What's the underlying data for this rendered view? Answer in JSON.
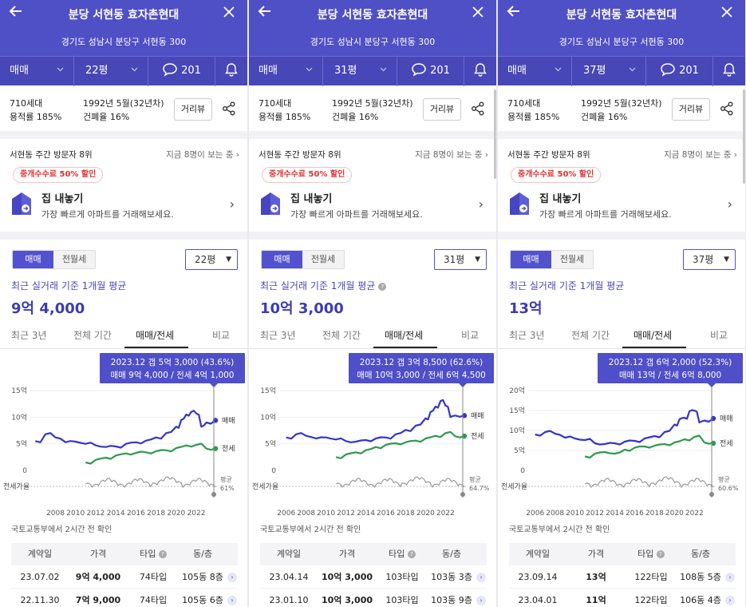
{
  "panels": [
    {
      "title": "분당 서현동 효자촌현대",
      "address": "경기도 성남시 분당구 서현동 300",
      "trade_type": "매매",
      "size": "22평",
      "comments": "201",
      "households": "710세대",
      "floor_area_ratio": "용적률 185%",
      "built": "1992년 5월(32년차)",
      "coverage": "건폐율 16%",
      "street_view": "거리뷰",
      "visit_rank": "서현동 주간 방문자 8위",
      "viewing_now": "지금 8명이 보는 중",
      "fee_badge": "중개수수료 50% 할인",
      "sell_title": "집 내놓기",
      "sell_sub": "가장 빠르게 아파트를 거래해보세요.",
      "toggle_on": "매매",
      "toggle_off": "전월세",
      "size_select": "22평",
      "avg_label": "최근 실거래 기준 1개월 평균",
      "avg_value": "9억 4,000",
      "tabs": [
        "최근 3년",
        "전체 기간",
        "매매/전세",
        "비교"
      ],
      "tooltip_line1": "2023.12  갭 5억 3,000 (43.6%)",
      "tooltip_line2": "매매 9억 4,000 / 전세 4억 1,000",
      "source": "국토교통부에서 2시간 전 확인",
      "table_headers": [
        "계약일",
        "가격",
        "타입",
        "동/층"
      ],
      "rows": [
        {
          "date": "23.07.02",
          "price": "9억 4,000",
          "type": "74타입",
          "floor": "105동 8층"
        },
        {
          "date": "22.11.30",
          "price": "7억 9,000",
          "type": "74타입",
          "floor": "105동 6층"
        }
      ]
    },
    {
      "title": "분당 서현동 효자촌현대",
      "address": "경기도 성남시 분당구 서현동 300",
      "trade_type": "매매",
      "size": "31평",
      "comments": "201",
      "households": "710세대",
      "floor_area_ratio": "용적률 185%",
      "built": "1992년 5월(32년차)",
      "coverage": "건폐율 16%",
      "street_view": "거리뷰",
      "visit_rank": "서현동 주간 방문자 8위",
      "viewing_now": "지금 8명이 보는 중",
      "fee_badge": "중개수수료 50% 할인",
      "sell_title": "집 내놓기",
      "sell_sub": "가장 빠르게 아파트를 거래해보세요.",
      "toggle_on": "매매",
      "toggle_off": "전월세",
      "size_select": "31평",
      "avg_label": "최근 실거래 기준 1개월 평균",
      "avg_value": "10억 3,000",
      "tabs": [
        "최근 3년",
        "전체 기간",
        "매매/전세",
        "비교"
      ],
      "tooltip_line1": "2023.12  갭 3억 8,500 (62.6%)",
      "tooltip_line2": "매매 10억 3,000 / 전세 6억 4,500",
      "source": "국토교통부에서 2시간 전 확인",
      "table_headers": [
        "계약일",
        "가격",
        "타입",
        "동/층"
      ],
      "rows": [
        {
          "date": "23.04.14",
          "price": "10억 3,000",
          "type": "103타입",
          "floor": "103동 3층"
        },
        {
          "date": "23.01.10",
          "price": "10억 3,000",
          "type": "103타입",
          "floor": "103동 9층"
        }
      ]
    },
    {
      "title": "분당 서현동 효자촌현대",
      "address": "경기도 성남시 분당구 서현동 300",
      "trade_type": "매매",
      "size": "37평",
      "comments": "201",
      "households": "710세대",
      "floor_area_ratio": "용적률 185%",
      "built": "1992년 5월(32년차)",
      "coverage": "건폐율 16%",
      "street_view": "거리뷰",
      "visit_rank": "서현동 주간 방문자 8위",
      "viewing_now": "지금 8명이 보는 중",
      "fee_badge": "중개수수료 50% 할인",
      "sell_title": "집 내놓기",
      "sell_sub": "가장 빠르게 아파트를 거래해보세요.",
      "toggle_on": "매매",
      "toggle_off": "전월세",
      "size_select": "37평",
      "avg_label": "최근 실거래 기준 1개월 평균",
      "avg_value": "13억",
      "tabs": [
        "최근 3년",
        "전체 기간",
        "매매/전세",
        "비교"
      ],
      "tooltip_line1": "2023.12  갭 6억 2,000 (52.3%)",
      "tooltip_line2": "매매 13억 / 전세 6억 8,000",
      "source": "국토교통부에서 2시간 전 확인",
      "table_headers": [
        "계약일",
        "가격",
        "타입",
        "동/층"
      ],
      "rows": [
        {
          "date": "23.09.14",
          "price": "13억",
          "type": "122타입",
          "floor": "108동 5층"
        },
        {
          "date": "23.04.01",
          "price": "11억",
          "type": "122타입",
          "floor": "106동 4층"
        }
      ]
    }
  ],
  "chart_data": [
    {
      "type": "line",
      "x_ticks": [
        "2008",
        "2010",
        "2012",
        "2014",
        "2016",
        "2018",
        "2020",
        "2022"
      ],
      "y_ticks": [
        "15억",
        "10억",
        "5억",
        "0"
      ],
      "ylim": [
        0,
        15
      ],
      "series": [
        {
          "name": "매매",
          "color": "#3535cc",
          "x": [
            2006,
            2007,
            2008,
            2009,
            2010,
            2011,
            2012,
            2013,
            2014,
            2015,
            2016,
            2017,
            2018,
            2019,
            2020,
            2020.5,
            2021,
            2021.5,
            2022,
            2022.5,
            2023,
            2023.9
          ],
          "values": [
            5.5,
            6.8,
            6.2,
            5.3,
            5.4,
            5.0,
            4.7,
            4.4,
            4.5,
            5.0,
            5.3,
            5.6,
            6.2,
            7.0,
            8.2,
            9.5,
            10.5,
            11.0,
            10.7,
            8.2,
            9.0,
            9.4
          ]
        },
        {
          "name": "전세",
          "color": "#2e9a4e",
          "x": [
            2011,
            2012,
            2013,
            2014,
            2015,
            2016,
            2017,
            2018,
            2019,
            2020,
            2021,
            2022,
            2023,
            2023.9
          ],
          "values": [
            1.5,
            2.0,
            2.4,
            2.8,
            3.2,
            3.3,
            3.4,
            3.6,
            3.8,
            4.2,
            4.7,
            4.8,
            4.1,
            4.1
          ]
        }
      ],
      "ratio_label": "전세가율",
      "ratio_avg_label": "평균",
      "ratio_avg": "61%",
      "legend": "right"
    },
    {
      "type": "line",
      "x_ticks": [
        "2006",
        "2008",
        "2010",
        "2012",
        "2014",
        "2016",
        "2018",
        "2020",
        "2022"
      ],
      "y_ticks": [
        "15억",
        "10억",
        "5억",
        "0"
      ],
      "ylim": [
        0,
        15
      ],
      "series": [
        {
          "name": "매매",
          "color": "#3535cc",
          "x": [
            2006,
            2007,
            2008,
            2009,
            2010,
            2011,
            2012,
            2013,
            2014,
            2015,
            2016,
            2017,
            2018,
            2019,
            2020,
            2020.5,
            2021,
            2021.5,
            2022,
            2022.5,
            2023,
            2023.9
          ],
          "values": [
            6.2,
            6.8,
            6.5,
            6.0,
            6.2,
            5.8,
            5.5,
            5.4,
            5.7,
            6.0,
            6.2,
            6.8,
            7.6,
            8.4,
            9.8,
            11.0,
            12.0,
            13.0,
            12.2,
            10.0,
            10.3,
            10.3
          ]
        },
        {
          "name": "전세",
          "color": "#2e9a4e",
          "x": [
            2011,
            2012,
            2013,
            2014,
            2015,
            2016,
            2017,
            2018,
            2019,
            2020,
            2021,
            2022,
            2023,
            2023.9
          ],
          "values": [
            2.5,
            3.0,
            3.4,
            3.8,
            4.4,
            4.8,
            5.1,
            5.3,
            5.6,
            6.0,
            6.5,
            7.0,
            6.4,
            6.45
          ]
        }
      ],
      "ratio_label": "전세가율",
      "ratio_avg_label": "평균",
      "ratio_avg": "64.7%",
      "legend": "right"
    },
    {
      "type": "line",
      "x_ticks": [
        "2006",
        "2008",
        "2010",
        "2012",
        "2014",
        "2016",
        "2018",
        "2020",
        "2022"
      ],
      "y_ticks": [
        "20억",
        "15억",
        "10억",
        "5억",
        "0"
      ],
      "ylim": [
        0,
        20
      ],
      "series": [
        {
          "name": "매매",
          "color": "#3535cc",
          "x": [
            2006,
            2007,
            2008,
            2009,
            2010,
            2011,
            2012,
            2013,
            2014,
            2015,
            2016,
            2017,
            2018,
            2019,
            2020,
            2020.5,
            2021,
            2021.5,
            2022,
            2022.5,
            2023,
            2023.9
          ],
          "values": [
            9.0,
            9.6,
            9.2,
            8.2,
            8.0,
            7.6,
            6.8,
            6.6,
            6.8,
            7.2,
            7.4,
            8.0,
            8.6,
            9.6,
            11.5,
            12.8,
            13.2,
            14.8,
            15.0,
            12.0,
            12.5,
            13.0
          ]
        },
        {
          "name": "전세",
          "color": "#2e9a4e",
          "x": [
            2011,
            2012,
            2013,
            2014,
            2015,
            2016,
            2017,
            2018,
            2019,
            2020,
            2021,
            2022,
            2023,
            2023.9
          ],
          "values": [
            3.5,
            4.2,
            4.6,
            4.2,
            5.2,
            5.7,
            6.0,
            6.2,
            6.6,
            7.0,
            7.8,
            8.4,
            7.0,
            6.8
          ]
        }
      ],
      "ratio_label": "전세가율",
      "ratio_avg_label": "평균",
      "ratio_avg": "60.6%",
      "legend": "right"
    }
  ]
}
